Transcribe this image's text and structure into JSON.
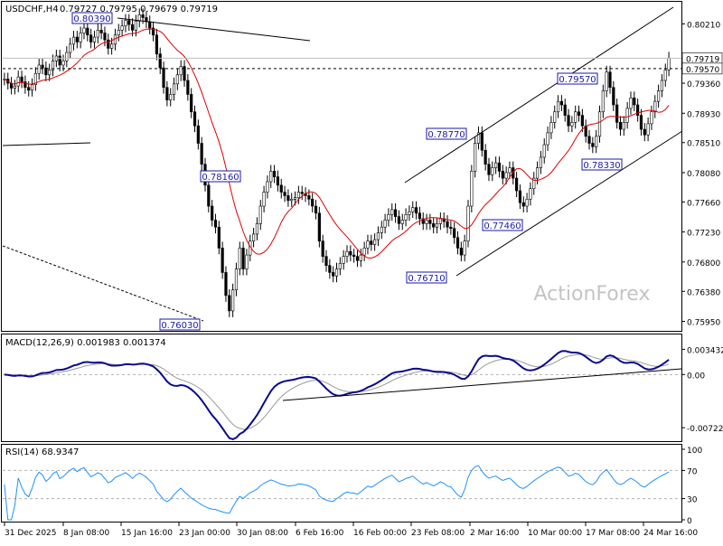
{
  "chart_data": [
    {
      "type": "candlestick",
      "title": "USDCHF,H4",
      "ohlc_header": "0.79727 0.79795 0.79679 0.79719",
      "x_tick_labels": [
        "31 Dec 2025",
        "8 Jan 08:00",
        "15 Jan 16:00",
        "23 Jan 00:00",
        "30 Jan 08:00",
        "6 Feb 16:00",
        "16 Feb 00:00",
        "23 Feb 08:00",
        "2 Mar 16:00",
        "10 Mar 00:00",
        "17 Mar 08:00",
        "24 Mar 16:00"
      ],
      "y_tick_labels": [
        "0.80210",
        "0.79360",
        "0.78930",
        "0.78510",
        "0.78080",
        "0.77660",
        "0.77230",
        "0.76800",
        "0.76380",
        "0.75950"
      ],
      "ylim": [
        0.7584,
        0.805
      ],
      "current_price": "0.79719",
      "marked_level": "0.79570",
      "moving_average": "red line",
      "annotations": [
        {
          "label": "0.80390",
          "value": 0.8039
        },
        {
          "label": "0.76030",
          "value": 0.7603
        },
        {
          "label": "0.78160",
          "value": 0.7816
        },
        {
          "label": "0.76710",
          "value": 0.7671
        },
        {
          "label": "0.78770",
          "value": 0.7877
        },
        {
          "label": "0.77460",
          "value": 0.7746
        },
        {
          "label": "0.78330",
          "value": 0.7833
        },
        {
          "label": "0.79570",
          "value": 0.7957
        }
      ],
      "close_series": [
        0.7942,
        0.7936,
        0.7929,
        0.7932,
        0.7945,
        0.7938,
        0.793,
        0.7926,
        0.7934,
        0.795,
        0.7962,
        0.7958,
        0.7948,
        0.7955,
        0.7968,
        0.7975,
        0.7962,
        0.7968,
        0.798,
        0.7992,
        0.8002,
        0.7995,
        0.8008,
        0.8015,
        0.8005,
        0.7995,
        0.8002,
        0.8012,
        0.8008,
        0.7998,
        0.7986,
        0.7992,
        0.8005,
        0.8012,
        0.8018,
        0.8026,
        0.802,
        0.8012,
        0.8025,
        0.8034,
        0.803,
        0.8024,
        0.8015,
        0.8005,
        0.7978,
        0.7958,
        0.793,
        0.7912,
        0.792,
        0.7935,
        0.7948,
        0.796,
        0.794,
        0.792,
        0.7895,
        0.7875,
        0.785,
        0.782,
        0.779,
        0.776,
        0.774,
        0.773,
        0.77,
        0.7665,
        0.7632,
        0.761,
        0.764,
        0.767,
        0.77,
        0.767,
        0.769,
        0.771,
        0.772,
        0.7735,
        0.776,
        0.778,
        0.7795,
        0.781,
        0.7802,
        0.779,
        0.778,
        0.7775,
        0.7768,
        0.777,
        0.7772,
        0.778,
        0.7778,
        0.7775,
        0.777,
        0.776,
        0.775,
        0.771,
        0.7688,
        0.7675,
        0.7665,
        0.766,
        0.767,
        0.7678,
        0.7688,
        0.7695,
        0.769,
        0.7688,
        0.7682,
        0.769,
        0.77,
        0.771,
        0.7705,
        0.7712,
        0.7722,
        0.773,
        0.774,
        0.7748,
        0.7755,
        0.7745,
        0.7735,
        0.774,
        0.7748,
        0.7752,
        0.7758,
        0.775,
        0.7742,
        0.7735,
        0.774,
        0.7735,
        0.773,
        0.7735,
        0.7742,
        0.7738,
        0.773,
        0.7728,
        0.7715,
        0.77,
        0.769,
        0.771,
        0.776,
        0.781,
        0.785,
        0.7865,
        0.784,
        0.782,
        0.7805,
        0.7815,
        0.7822,
        0.781,
        0.78,
        0.7808,
        0.7815,
        0.78,
        0.7782,
        0.7765,
        0.776,
        0.777,
        0.7785,
        0.78,
        0.7815,
        0.783,
        0.7848,
        0.7865,
        0.788,
        0.7895,
        0.791,
        0.7905,
        0.789,
        0.7875,
        0.788,
        0.7895,
        0.789,
        0.7875,
        0.786,
        0.785,
        0.7845,
        0.786,
        0.7895,
        0.7925,
        0.7952,
        0.793,
        0.7905,
        0.788,
        0.787,
        0.788,
        0.79,
        0.7915,
        0.7905,
        0.789,
        0.787,
        0.7862,
        0.7878,
        0.7895,
        0.791,
        0.7925,
        0.794,
        0.7955,
        0.7972
      ],
      "macd": {
        "label": "MACD(12,26,9) 0.001983 0.001374",
        "y_tick_labels": [
          "0.003432",
          "0.00",
          "-0.007223"
        ],
        "ylim": [
          -0.0088,
          0.0052
        ],
        "trendline": "rising support line under the MACD lows"
      },
      "rsi": {
        "label": "RSI(14) 68.9347",
        "y_tick_labels": [
          "100",
          "70",
          "30",
          "0"
        ],
        "ylim": [
          0,
          100
        ],
        "levels": [
          70,
          30
        ]
      },
      "watermark": "ActionForex"
    }
  ]
}
